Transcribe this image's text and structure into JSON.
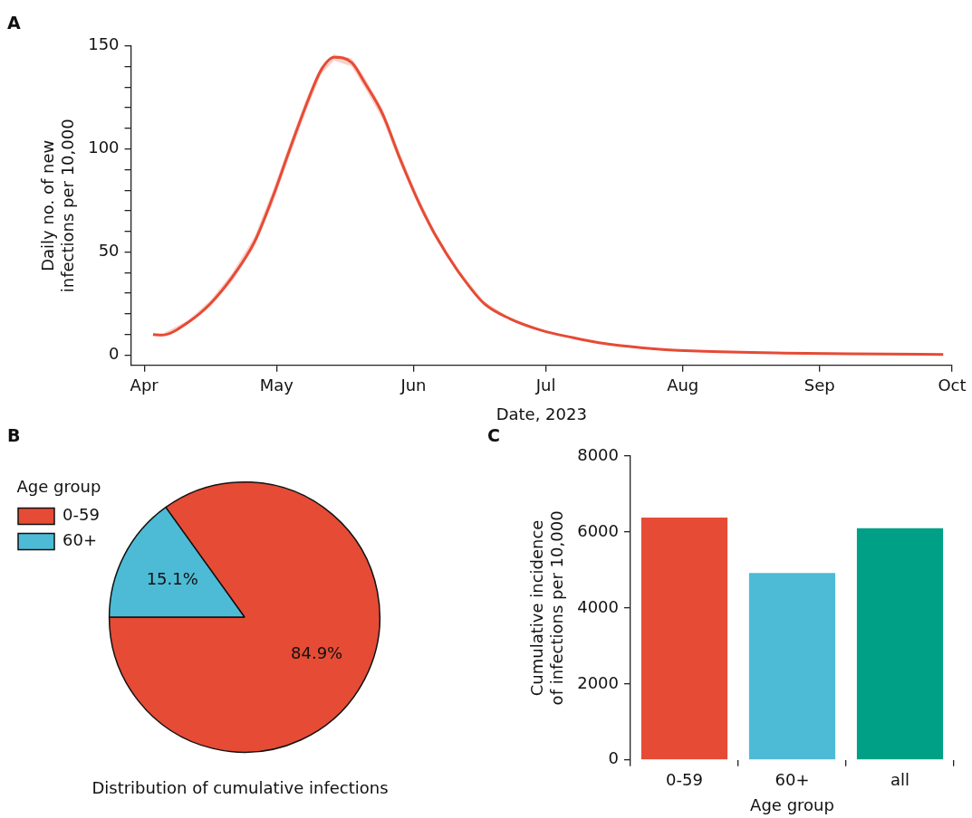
{
  "chart_data": [
    {
      "type": "line",
      "annotations": [
        "A"
      ],
      "xlabel": "Date, 2023",
      "ylabel": "Daily no. of new\ninfections per 10,000",
      "x": [
        "2023-04-03",
        "2023-04-05",
        "2023-04-11",
        "2023-04-16",
        "2023-04-21",
        "2023-04-26",
        "2023-04-30",
        "2023-05-04",
        "2023-05-08",
        "2023-05-11",
        "2023-05-14",
        "2023-05-18",
        "2023-05-21",
        "2023-05-25",
        "2023-05-29",
        "2023-06-02",
        "2023-06-06",
        "2023-06-11",
        "2023-06-17",
        "2023-06-23",
        "2023-06-30",
        "2023-07-07",
        "2023-07-13",
        "2023-07-23",
        "2023-08-03",
        "2023-08-24",
        "2023-09-08",
        "2023-09-29"
      ],
      "series": [
        {
          "color": "#e64b35",
          "values": [
            10,
            9.7,
            16,
            25,
            38,
            55,
            76,
            100,
            123,
            138,
            144.5,
            142,
            132,
            117,
            95,
            75,
            58,
            41,
            25,
            17.5,
            12,
            8.5,
            6,
            3.5,
            2,
            1,
            0.6,
            0.3
          ],
          "lower": [
            9.5,
            9.2,
            15,
            23.5,
            36,
            52.5,
            73,
            97,
            120,
            136,
            143,
            140,
            129.5,
            114.5,
            92.5,
            73,
            56.5,
            40,
            24,
            17,
            11.5,
            8.2,
            5.8,
            3.4,
            1.9,
            0.95,
            0.55,
            0.28
          ],
          "upper": [
            10.5,
            10.2,
            17,
            26.5,
            40,
            57.5,
            79,
            103,
            126,
            140,
            146,
            144,
            134.5,
            119.5,
            97.5,
            77,
            59.5,
            42,
            26,
            18,
            12.5,
            8.8,
            6.2,
            3.6,
            2.1,
            1.05,
            0.65,
            0.32
          ]
        }
      ],
      "xlim": [
        "2023-03-29",
        "2023-10-01"
      ],
      "xticks": [
        {
          "value": "2023-04-01",
          "label": "Apr"
        },
        {
          "value": "2023-05-01",
          "label": "May"
        },
        {
          "value": "2023-06-01",
          "label": "Jun"
        },
        {
          "value": "2023-07-01",
          "label": "Jul"
        },
        {
          "value": "2023-08-01",
          "label": "Aug"
        },
        {
          "value": "2023-09-01",
          "label": "Sep"
        },
        {
          "value": "2023-10-01",
          "label": "Oct"
        }
      ],
      "ylim": [
        -5,
        150
      ],
      "yticks": [
        0,
        {
          "value": 10,
          "label": null
        },
        {
          "value": 20,
          "label": null
        },
        {
          "value": 30,
          "label": null
        },
        {
          "value": 40,
          "label": null
        },
        50,
        {
          "value": 60,
          "label": null
        },
        {
          "value": 70,
          "label": null
        },
        {
          "value": 80,
          "label": null
        },
        {
          "value": 90,
          "label": null
        },
        100,
        {
          "value": 110,
          "label": null
        },
        {
          "value": 120,
          "label": null
        },
        {
          "value": 130,
          "label": null
        },
        {
          "value": 140,
          "label": null
        },
        150
      ]
    },
    {
      "type": "pie",
      "annotations": [
        "B"
      ],
      "xlabel": "Distribution of cumulative infections",
      "categories": [
        "0-59",
        "60+"
      ],
      "values": [
        84.9,
        15.1
      ],
      "colors": [
        "#e64b35",
        "#4dbbd5"
      ],
      "value_labels": [
        "84.9%",
        "15.1%"
      ],
      "legend": "top left",
      "legend_title": "Age group"
    },
    {
      "type": "bar",
      "annotations": [
        "C"
      ],
      "xlabel": "Age group",
      "ylabel": "Cumulative incidence\nof infections per 10,000",
      "categories": [
        "0-59",
        "60+",
        "all"
      ],
      "values": [
        6380,
        4920,
        6100
      ],
      "colors": [
        "#e64b35",
        "#4dbbd5",
        "#00a087"
      ],
      "ylim": [
        0,
        8000
      ],
      "yticks": [
        0,
        2000,
        4000,
        6000,
        8000
      ]
    }
  ]
}
